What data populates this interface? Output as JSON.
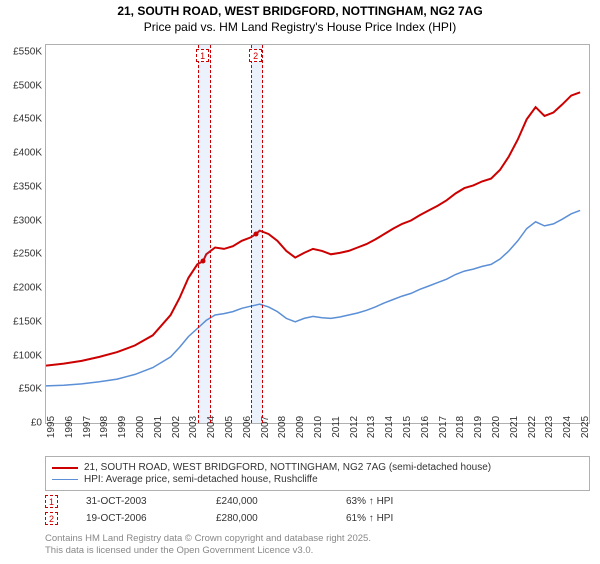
{
  "title_main": "21, SOUTH ROAD, WEST BRIDGFORD, NOTTINGHAM, NG2 7AG",
  "title_sub": "Price paid vs. HM Land Registry's House Price Index (HPI)",
  "chart": {
    "type": "line",
    "background_color": "#ffffff",
    "border_color": "#b0b0b0",
    "x_min": 1995,
    "x_max": 2025.5,
    "x_ticks": [
      1995,
      1996,
      1997,
      1998,
      1999,
      2000,
      2001,
      2002,
      2003,
      2004,
      2005,
      2006,
      2007,
      2008,
      2009,
      2010,
      2011,
      2012,
      2013,
      2014,
      2015,
      2016,
      2017,
      2018,
      2019,
      2020,
      2021,
      2022,
      2023,
      2024,
      2025
    ],
    "y_min": 0,
    "y_max": 560000,
    "y_ticks": [
      0,
      50000,
      100000,
      150000,
      200000,
      250000,
      300000,
      350000,
      400000,
      450000,
      500000,
      550000
    ],
    "y_tick_labels": [
      "£0",
      "£50K",
      "£100K",
      "£150K",
      "£200K",
      "£250K",
      "£300K",
      "£350K",
      "£400K",
      "£450K",
      "£500K",
      "£550K"
    ],
    "series": [
      {
        "label": "21, SOUTH ROAD, WEST BRIDGFORD, NOTTINGHAM, NG2 7AG (semi-detached house)",
        "color": "#cc0000",
        "line_width": 2,
        "points": [
          [
            1995,
            85000
          ],
          [
            1996,
            88000
          ],
          [
            1997,
            92000
          ],
          [
            1998,
            98000
          ],
          [
            1999,
            105000
          ],
          [
            2000,
            115000
          ],
          [
            2001,
            130000
          ],
          [
            2002,
            160000
          ],
          [
            2002.5,
            185000
          ],
          [
            2003,
            215000
          ],
          [
            2003.5,
            235000
          ],
          [
            2003.83,
            240000
          ],
          [
            2004,
            250000
          ],
          [
            2004.5,
            260000
          ],
          [
            2005,
            258000
          ],
          [
            2005.5,
            262000
          ],
          [
            2006,
            270000
          ],
          [
            2006.5,
            275000
          ],
          [
            2006.8,
            280000
          ],
          [
            2007,
            285000
          ],
          [
            2007.5,
            280000
          ],
          [
            2008,
            270000
          ],
          [
            2008.5,
            255000
          ],
          [
            2009,
            245000
          ],
          [
            2009.5,
            252000
          ],
          [
            2010,
            258000
          ],
          [
            2010.5,
            255000
          ],
          [
            2011,
            250000
          ],
          [
            2011.5,
            252000
          ],
          [
            2012,
            255000
          ],
          [
            2012.5,
            260000
          ],
          [
            2013,
            265000
          ],
          [
            2013.5,
            272000
          ],
          [
            2014,
            280000
          ],
          [
            2014.5,
            288000
          ],
          [
            2015,
            295000
          ],
          [
            2015.5,
            300000
          ],
          [
            2016,
            308000
          ],
          [
            2016.5,
            315000
          ],
          [
            2017,
            322000
          ],
          [
            2017.5,
            330000
          ],
          [
            2018,
            340000
          ],
          [
            2018.5,
            348000
          ],
          [
            2019,
            352000
          ],
          [
            2019.5,
            358000
          ],
          [
            2020,
            362000
          ],
          [
            2020.5,
            375000
          ],
          [
            2021,
            395000
          ],
          [
            2021.5,
            420000
          ],
          [
            2022,
            450000
          ],
          [
            2022.5,
            468000
          ],
          [
            2023,
            455000
          ],
          [
            2023.5,
            460000
          ],
          [
            2024,
            472000
          ],
          [
            2024.5,
            485000
          ],
          [
            2025,
            490000
          ]
        ]
      },
      {
        "label": "HPI: Average price, semi-detached house, Rushcliffe",
        "color": "#5b8fd6",
        "line_width": 1.5,
        "points": [
          [
            1995,
            55000
          ],
          [
            1996,
            56000
          ],
          [
            1997,
            58000
          ],
          [
            1998,
            61000
          ],
          [
            1999,
            65000
          ],
          [
            2000,
            72000
          ],
          [
            2001,
            82000
          ],
          [
            2002,
            98000
          ],
          [
            2002.5,
            112000
          ],
          [
            2003,
            128000
          ],
          [
            2003.5,
            140000
          ],
          [
            2004,
            152000
          ],
          [
            2004.5,
            160000
          ],
          [
            2005,
            162000
          ],
          [
            2005.5,
            165000
          ],
          [
            2006,
            170000
          ],
          [
            2006.5,
            173000
          ],
          [
            2007,
            176000
          ],
          [
            2007.5,
            172000
          ],
          [
            2008,
            165000
          ],
          [
            2008.5,
            155000
          ],
          [
            2009,
            150000
          ],
          [
            2009.5,
            155000
          ],
          [
            2010,
            158000
          ],
          [
            2010.5,
            156000
          ],
          [
            2011,
            155000
          ],
          [
            2011.5,
            157000
          ],
          [
            2012,
            160000
          ],
          [
            2012.5,
            163000
          ],
          [
            2013,
            167000
          ],
          [
            2013.5,
            172000
          ],
          [
            2014,
            178000
          ],
          [
            2014.5,
            183000
          ],
          [
            2015,
            188000
          ],
          [
            2015.5,
            192000
          ],
          [
            2016,
            198000
          ],
          [
            2016.5,
            203000
          ],
          [
            2017,
            208000
          ],
          [
            2017.5,
            213000
          ],
          [
            2018,
            220000
          ],
          [
            2018.5,
            225000
          ],
          [
            2019,
            228000
          ],
          [
            2019.5,
            232000
          ],
          [
            2020,
            235000
          ],
          [
            2020.5,
            243000
          ],
          [
            2021,
            255000
          ],
          [
            2021.5,
            270000
          ],
          [
            2022,
            288000
          ],
          [
            2022.5,
            298000
          ],
          [
            2023,
            292000
          ],
          [
            2023.5,
            295000
          ],
          [
            2024,
            302000
          ],
          [
            2024.5,
            310000
          ],
          [
            2025,
            315000
          ]
        ]
      }
    ],
    "markers": [
      {
        "num": "1",
        "year": 2003.83,
        "price": 240000,
        "band_width_years": 0.6
      },
      {
        "num": "2",
        "year": 2006.8,
        "price": 280000,
        "band_width_years": 0.6
      }
    ]
  },
  "legend": {
    "border_color": "#b0b0b0"
  },
  "sales": [
    {
      "marker": "1",
      "date": "31-OCT-2003",
      "price": "£240,000",
      "diff": "63% ↑ HPI"
    },
    {
      "marker": "2",
      "date": "19-OCT-2006",
      "price": "£280,000",
      "diff": "61% ↑ HPI"
    }
  ],
  "footer_line1": "Contains HM Land Registry data © Crown copyright and database right 2025.",
  "footer_line2": "This data is licensed under the Open Government Licence v3.0."
}
